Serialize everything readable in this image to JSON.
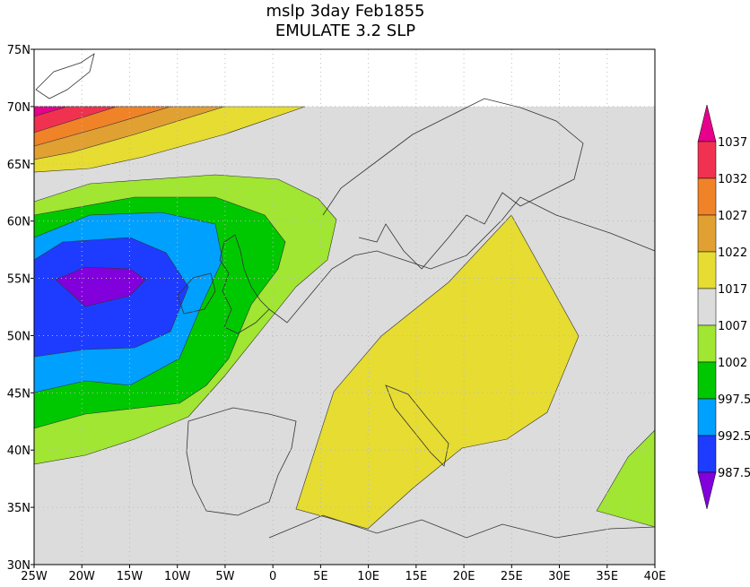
{
  "map": {
    "title": "mslp 3day Feb1855",
    "subtitle": "EMULATE 3.2 SLP",
    "xlim": [
      -25,
      40
    ],
    "ylim": [
      30,
      75
    ],
    "xticks": [
      {
        "value": -25,
        "label": "25W"
      },
      {
        "value": -20,
        "label": "20W"
      },
      {
        "value": -15,
        "label": "15W"
      },
      {
        "value": -10,
        "label": "10W"
      },
      {
        "value": -5,
        "label": "5W"
      },
      0,
      {
        "value": 5,
        "label": "5E"
      },
      {
        "value": 10,
        "label": "10E"
      },
      {
        "value": 15,
        "label": "15E"
      },
      {
        "value": 20,
        "label": "20E"
      },
      {
        "value": 25,
        "label": "25E"
      },
      {
        "value": 30,
        "label": "30E"
      },
      {
        "value": 35,
        "label": "35E"
      },
      {
        "value": 40,
        "label": "40E"
      }
    ],
    "yticks": [
      {
        "value": 30,
        "label": "30N"
      },
      {
        "value": 35,
        "label": "35N"
      },
      {
        "value": 40,
        "label": "40N"
      },
      {
        "value": 45,
        "label": "45N"
      },
      {
        "value": 50,
        "label": "50N"
      },
      {
        "value": 55,
        "label": "55N"
      },
      {
        "value": 60,
        "label": "60N"
      },
      {
        "value": 65,
        "label": "65N"
      },
      {
        "value": 70,
        "label": "70N"
      },
      {
        "value": 75,
        "label": "75N"
      }
    ],
    "grid": true,
    "colorbar": {
      "levels": [
        1037,
        1032,
        1027,
        1022,
        1017,
        1007,
        1002,
        997.5,
        992.5,
        987.5
      ],
      "colors": [
        "#e6008c",
        "#f03250",
        "#f08228",
        "#e0a032",
        "#e6dc32",
        "#dcdcdc",
        "#a0e632",
        "#00c800",
        "#00a0ff",
        "#1e3cff",
        "#8200dc"
      ]
    }
  }
}
